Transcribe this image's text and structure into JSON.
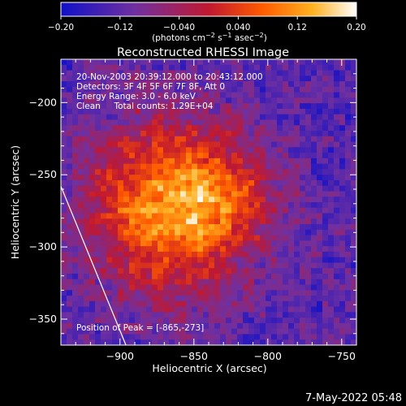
{
  "chart_data": {
    "type": "heatmap",
    "title": "Reconstructed RHESSI Image",
    "xlabel": "Heliocentric X (arcsec)",
    "ylabel": "Heliocentric Y (arcsec)",
    "xlim": [
      -940,
      -740
    ],
    "ylim": [
      -368,
      -170
    ],
    "xticks": [
      -900,
      -850,
      -800,
      -750
    ],
    "yticks": [
      -200,
      -250,
      -300,
      -350
    ],
    "xtick_labels": [
      "−900",
      "−850",
      "−800",
      "−750"
    ],
    "ytick_labels": [
      "−200",
      "−250",
      "−300",
      "−350"
    ],
    "colorbar": {
      "range": [
        -0.2,
        0.2
      ],
      "ticks": [
        -0.2,
        -0.12,
        -0.04,
        0.04,
        0.12,
        0.2
      ],
      "tick_labels": [
        "−0.20",
        "−0.12",
        "−0.040",
        "0.040",
        "0.12",
        "0.20"
      ],
      "colors": [
        "#1010c8",
        "#7030a0",
        "#c01830",
        "#ff5a00",
        "#ffb020",
        "#ffffff"
      ]
    },
    "annotations": [
      "20-Nov-2003 20:39:12.000 to 20:43:12.000",
      "Detectors: 3F 4F 5F 6F 7F 8F, Att 0",
      "Energy Range: 3.0 - 6.0 keV",
      "Clean     Total counts: 1.29E+04"
    ],
    "peak_label": "Position of Peak = [-865,-273]",
    "peak": {
      "x": -865,
      "y": -273
    },
    "limb_line": [
      [
        -940,
        -258
      ],
      [
        -896,
        -368
      ]
    ]
  },
  "footer_timestamp": "7-May-2022 05:48"
}
